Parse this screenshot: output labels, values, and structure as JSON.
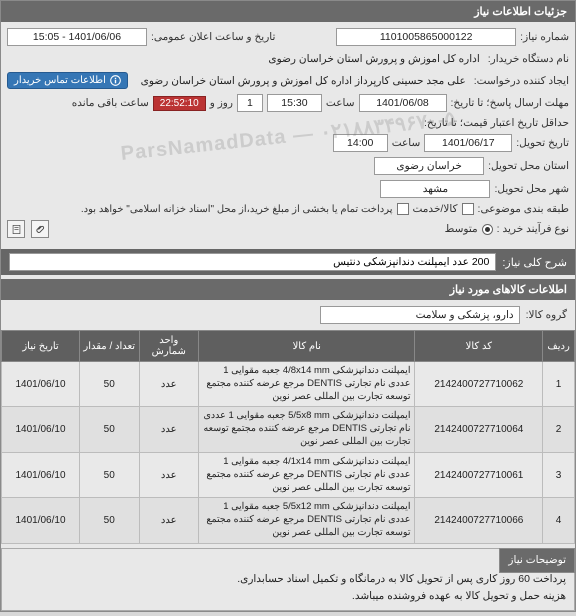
{
  "panel_title": "جزئیات اطلاعات نیاز",
  "labels": {
    "need_no": "شماره نیاز:",
    "public_datetime": "تاریخ و ساعت اعلان عمومی:",
    "buyer_org": "نام دستگاه خریدار:",
    "requester": "ایجاد کننده درخواست:",
    "deadline": "حداقل تاریخ اعتبار قیمت؛ تا تاریخ:",
    "deadline_reply": "مهلت ارسال پاسخ؛ تا تاریخ:",
    "delivery_date": "تاریخ تحویل:",
    "delivery_province": "استان محل تحویل:",
    "delivery_city": "شهر محل تحویل:",
    "subject_class": "طبقه بندی موضوعی:",
    "buy_process": "نوع فرآیند خرید :",
    "hour": "ساعت",
    "day_and": "روز و",
    "remaining": "ساعت باقی مانده",
    "contact_buyer": "اطلاعات تماس خریدار",
    "ck_service": "کالا/خدمت",
    "payment_note": "پرداخت تمام یا بخشی از مبلغ خرید،از محل \"اسناد خزانه اسلامی\" خواهد بود.",
    "priority_mid": "متوسط",
    "need_desc": "شرح کلی نیاز:",
    "items_header": "اطلاعات کالاهای مورد نیاز",
    "group": "گروه کالا:",
    "explain_tab": "توضیحات نیاز"
  },
  "values": {
    "need_no": "1101005865000122",
    "public_datetime": "1401/06/06 - 15:05",
    "buyer_org": "اداره کل اموزش و پرورش استان خراسان رضوی",
    "requester": "علی مجد حسینی کارپرداز اداره کل اموزش و پرورش استان خراسان رضوی",
    "reply_date": "1401/06/08",
    "reply_time": "15:30",
    "remain_days": "1",
    "remain_time": "22:52:10",
    "delivery_date": "1401/06/17",
    "delivery_time": "14:00",
    "province": "خراسان رضوی",
    "city": "مشهد",
    "need_desc": "200 عدد ایمپلنت دندانپزشکی دنتیس",
    "group": "دارو، پزشکی و سلامت"
  },
  "watermark": "ParsNamadData — ۰۲۱۸۸۳۴۹۶۷۰-۵",
  "table": {
    "headers": [
      "ردیف",
      "کد کالا",
      "نام کالا",
      "واحد شمارش",
      "تعداد / مقدار",
      "تاریخ نیاز"
    ],
    "rows": [
      {
        "idx": "1",
        "code": "2142400727710062",
        "name": "ایمپلنت دندانپزشکی 4/8x14 mm جعبه مقوایی 1 عددی نام تجارتی DENTIS مرجع عرضه کننده مجتمع توسعه تجارت بین المللی عصر نوین",
        "unit": "عدد",
        "qty": "50",
        "date": "1401/06/10"
      },
      {
        "idx": "2",
        "code": "2142400727710064",
        "name": "ایمپلنت دندانپزشکی 5/5x8 mm جعبه مقوایی 1 عددی نام تجارتی DENTIS مرجع عرضه کننده مجتمع توسعه تجارت بین المللی عصر نوین",
        "unit": "عدد",
        "qty": "50",
        "date": "1401/06/10"
      },
      {
        "idx": "3",
        "code": "2142400727710061",
        "name": "ایمپلنت دندانپزشکی 4/1x14 mm جعبه مقوایی 1 عددی نام تجارتی DENTIS مرجع عرضه کننده مجتمع توسعه تجارت بین المللی عصر نوین",
        "unit": "عدد",
        "qty": "50",
        "date": "1401/06/10"
      },
      {
        "idx": "4",
        "code": "2142400727710066",
        "name": "ایمپلنت دندانپزشکی 5/5x12 mm جعبه مقوایی 1 عددی نام تجارتی DENTIS مرجع عرضه کننده مجتمع توسعه تجارت بین المللی عصر نوین",
        "unit": "عدد",
        "qty": "50",
        "date": "1401/06/10"
      }
    ]
  },
  "notes": [
    "پرداخت 60 روز کاری پس از تحویل کالا به درمانگاه و تکمیل اسناد حسابداری.",
    "هزینه حمل و تحویل کالا به عهده فروشنده میباشد."
  ]
}
